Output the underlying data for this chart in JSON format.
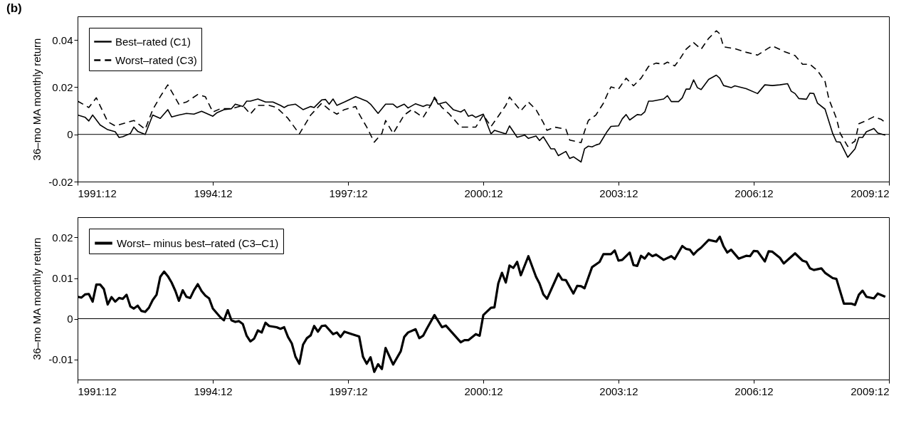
{
  "chart_data": [
    {
      "type": "line",
      "title": "(b)",
      "ylabel": "36–mo MA monthly return",
      "xlim": [
        "1991-12",
        "2009-12"
      ],
      "xticks": [
        {
          "value": "1991-12",
          "label": "1991:12"
        },
        {
          "value": "1994-12",
          "label": "1994:12"
        },
        {
          "value": "1997-12",
          "label": "1997:12"
        },
        {
          "value": "2000-12",
          "label": "2000:12"
        },
        {
          "value": "2003-12",
          "label": "2003:12"
        },
        {
          "value": "2006-12",
          "label": "2006:12"
        },
        {
          "value": "2009-12",
          "label": "2009:12"
        }
      ],
      "ylim": [
        -0.02,
        0.05
      ],
      "yticks": [
        -0.02,
        0,
        0.02,
        0.04
      ],
      "legend": "top left",
      "grid": false,
      "ref_lines": [
        {
          "axis": "y",
          "value": 0,
          "color": "#000000"
        }
      ],
      "series": [
        {
          "name": "Best–rated (C1)",
          "color": "#000000",
          "line_style": "solid",
          "x": [
            "1991-12",
            "1992-02",
            "1992-03",
            "1992-04",
            "1992-06",
            "1992-08",
            "1992-10",
            "1992-11",
            "1992-12",
            "1993-02",
            "1993-03",
            "1993-04",
            "1993-06",
            "1993-08",
            "1993-10",
            "1993-12",
            "1994-01",
            "1994-03",
            "1994-05",
            "1994-07",
            "1994-09",
            "1994-10",
            "1994-12",
            "1995-01",
            "1995-03",
            "1995-05",
            "1995-06",
            "1995-08",
            "1995-09",
            "1995-10",
            "1995-12",
            "1996-02",
            "1996-04",
            "1996-06",
            "1996-07",
            "1996-08",
            "1996-10",
            "1996-12",
            "1997-02",
            "1997-03",
            "1997-05",
            "1997-06",
            "1997-07",
            "1997-08",
            "1997-09",
            "1997-11",
            "1998-02",
            "1998-05",
            "1998-06",
            "1998-08",
            "1998-10",
            "1998-12",
            "1999-01",
            "1999-03",
            "1999-04",
            "1999-06",
            "1999-08",
            "1999-09",
            "1999-10",
            "1999-11",
            "1999-12",
            "2000-02",
            "2000-04",
            "2000-06",
            "2000-07",
            "2000-08",
            "2000-09",
            "2000-10",
            "2000-12",
            "2001-02",
            "2001-03",
            "2001-06",
            "2001-07",
            "2001-09",
            "2001-11",
            "2001-12",
            "2002-02",
            "2002-03",
            "2002-04",
            "2002-06",
            "2002-07",
            "2002-08",
            "2002-10",
            "2002-11",
            "2002-12",
            "2003-02",
            "2003-03",
            "2003-04",
            "2003-05",
            "2003-06",
            "2003-07",
            "2003-09",
            "2003-10",
            "2003-12",
            "2004-01",
            "2004-02",
            "2004-03",
            "2004-05",
            "2004-06",
            "2004-07",
            "2004-08",
            "2004-09",
            "2004-12",
            "2005-01",
            "2005-02",
            "2005-04",
            "2005-05",
            "2005-06",
            "2005-07",
            "2005-08",
            "2005-09",
            "2005-10",
            "2005-12",
            "2006-02",
            "2006-03",
            "2006-04",
            "2006-06",
            "2006-07",
            "2006-10",
            "2007-01",
            "2007-03",
            "2007-05",
            "2007-07",
            "2007-09",
            "2007-10",
            "2007-11",
            "2007-12",
            "2008-02",
            "2008-03",
            "2008-04",
            "2008-05",
            "2008-07",
            "2008-09",
            "2008-10",
            "2008-11",
            "2009-01",
            "2009-03",
            "2009-04",
            "2009-05",
            "2009-06",
            "2009-08",
            "2009-09",
            "2009-11"
          ],
          "values": [
            0.0082,
            0.0072,
            0.0057,
            0.0082,
            0.004,
            0.002,
            0.0011,
            -0.0013,
            -0.001,
            0.0004,
            0.0031,
            0.0013,
            0,
            0.0082,
            0.0068,
            0.0105,
            0.0074,
            0.0082,
            0.0089,
            0.0086,
            0.0098,
            0.0091,
            0.0077,
            0.0091,
            0.0105,
            0.0109,
            0.0128,
            0.0118,
            0.0141,
            0.0141,
            0.015,
            0.0137,
            0.0137,
            0.0123,
            0.0114,
            0.0123,
            0.0128,
            0.0105,
            0.0118,
            0.0114,
            0.0146,
            0.0148,
            0.0128,
            0.015,
            0.0123,
            0.0137,
            0.016,
            0.0141,
            0.0128,
            0.0089,
            0.0128,
            0.0128,
            0.0114,
            0.0128,
            0.0112,
            0.013,
            0.0118,
            0.0125,
            0.0123,
            0.0155,
            0.0128,
            0.0137,
            0.0105,
            0.0095,
            0.0105,
            0.0077,
            0.0082,
            0.0072,
            0.0086,
            0.0002,
            0.0017,
            0.0002,
            0.0036,
            -0.0012,
            -0.0003,
            -0.0017,
            -0.0007,
            -0.0026,
            -0.001,
            -0.0061,
            -0.0061,
            -0.009,
            -0.0072,
            -0.0102,
            -0.0095,
            -0.0117,
            -0.0061,
            -0.005,
            -0.0053,
            -0.0045,
            -0.004,
            0.0013,
            0.0034,
            0.0036,
            0.0066,
            0.0084,
            0.0061,
            0.0084,
            0.0082,
            0.0095,
            0.0141,
            0.0141,
            0.015,
            0.0164,
            0.0139,
            0.0139,
            0.0155,
            0.0192,
            0.0192,
            0.0231,
            0.0198,
            0.019,
            0.0233,
            0.0251,
            0.0238,
            0.0207,
            0.0198,
            0.0206,
            0.0194,
            0.0173,
            0.021,
            0.0207,
            0.021,
            0.0215,
            0.0183,
            0.0173,
            0.0152,
            0.0149,
            0.0175,
            0.0173,
            0.0132,
            0.0107,
            0.0004,
            -0.0031,
            -0.0033,
            -0.0097,
            -0.0061,
            -0.0013,
            -0.0013,
            0.0011,
            0.0025,
            0.0006,
            -0.0003
          ]
        },
        {
          "name": "Worst–rated (C3)",
          "color": "#000000",
          "line_style": "dashed",
          "x": [
            "1991-12",
            "1992-03",
            "1992-05",
            "1992-08",
            "1992-10",
            "1993-03",
            "1993-06",
            "1993-08",
            "1993-10",
            "1993-12",
            "1994-03",
            "1994-05",
            "1994-08",
            "1994-10",
            "1994-12",
            "1995-02",
            "1995-05",
            "1995-08",
            "1995-10",
            "1995-12",
            "1996-03",
            "1996-05",
            "1996-08",
            "1996-11",
            "1997-02",
            "1997-05",
            "1997-07",
            "1997-09",
            "1997-11",
            "1998-02",
            "1998-03",
            "1998-05",
            "1998-07",
            "1998-09",
            "1998-10",
            "1998-12",
            "1999-03",
            "1999-05",
            "1999-08",
            "1999-10",
            "1999-11",
            "2000-01",
            "2000-03",
            "2000-06",
            "2000-08",
            "2000-10",
            "2000-12",
            "2001-02",
            "2001-04",
            "2001-06",
            "2001-07",
            "2001-10",
            "2001-12",
            "2002-02",
            "2002-04",
            "2002-05",
            "2002-07",
            "2002-10",
            "2002-11",
            "2003-02",
            "2003-03",
            "2003-04",
            "2003-06",
            "2003-08",
            "2003-09",
            "2003-10",
            "2003-12",
            "2004-02",
            "2004-04",
            "2004-06",
            "2004-08",
            "2004-10",
            "2004-12",
            "2005-01",
            "2005-03",
            "2005-04",
            "2005-06",
            "2005-08",
            "2005-10",
            "2005-12",
            "2006-02",
            "2006-03",
            "2006-04",
            "2006-07",
            "2006-10",
            "2007-01",
            "2007-04",
            "2007-05",
            "2007-08",
            "2007-11",
            "2008-01",
            "2008-03",
            "2008-05",
            "2008-07",
            "2008-08",
            "2008-10",
            "2008-11",
            "2009-01",
            "2009-03",
            "2009-04",
            "2009-06",
            "2009-08",
            "2009-10",
            "2009-11"
          ],
          "values": [
            0.0141,
            0.0114,
            0.0155,
            0.0054,
            0.0036,
            0.0059,
            0.0022,
            0.0105,
            0.016,
            0.021,
            0.0128,
            0.0137,
            0.0169,
            0.016,
            0.0095,
            0.0109,
            0.0109,
            0.0123,
            0.0086,
            0.0123,
            0.0123,
            0.0114,
            0.0068,
            0.0002,
            0.0082,
            0.0132,
            0.0105,
            0.0086,
            0.0105,
            0.0118,
            0.0086,
            0.0031,
            -0.0033,
            0.0004,
            0.0059,
            0.0004,
            0.0082,
            0.0105,
            0.0072,
            0.0123,
            0.0158,
            0.0114,
            0.0086,
            0.0031,
            0.0031,
            0.0031,
            0.0082,
            0.0033,
            0.0077,
            0.0123,
            0.0158,
            0.01,
            0.0137,
            0.0105,
            0.005,
            0.0017,
            0.0031,
            0.0022,
            -0.0024,
            -0.0035,
            0.0013,
            0.0059,
            0.0082,
            0.0132,
            0.0169,
            0.0201,
            0.0192,
            0.0238,
            0.0206,
            0.0238,
            0.0288,
            0.0302,
            0.0297,
            0.0306,
            0.029,
            0.0311,
            0.0361,
            0.0389,
            0.0361,
            0.0407,
            0.0439,
            0.0426,
            0.0371,
            0.0363,
            0.0348,
            0.0336,
            0.0366,
            0.0375,
            0.0352,
            0.0334,
            0.0297,
            0.0297,
            0.027,
            0.0224,
            0.015,
            0.0068,
            0.0004,
            -0.0051,
            -0.0028,
            0.0045,
            0.0059,
            0.0075,
            0.0063,
            0.0051
          ]
        }
      ]
    },
    {
      "type": "line",
      "ylabel": "36–mo MA monthly return",
      "xlim": [
        "1991-12",
        "2009-12"
      ],
      "xticks": [
        {
          "value": "1991-12",
          "label": "1991:12"
        },
        {
          "value": "1994-12",
          "label": "1994:12"
        },
        {
          "value": "1997-12",
          "label": "1997:12"
        },
        {
          "value": "2000-12",
          "label": "2000:12"
        },
        {
          "value": "2003-12",
          "label": "2003:12"
        },
        {
          "value": "2006-12",
          "label": "2006:12"
        },
        {
          "value": "2009-12",
          "label": "2009:12"
        }
      ],
      "ylim": [
        -0.015,
        0.025
      ],
      "yticks": [
        -0.01,
        0,
        0.01,
        0.02
      ],
      "legend": "top left",
      "grid": false,
      "ref_lines": [
        {
          "axis": "y",
          "value": 0,
          "color": "#000000"
        }
      ],
      "series": [
        {
          "name": "Worst– minus best–rated (C3–C1)",
          "color": "#000000",
          "line_style": "solid",
          "x": [
            "1991-12",
            "1992-01",
            "1992-02",
            "1992-03",
            "1992-04",
            "1992-05",
            "1992-06",
            "1992-07",
            "1992-08",
            "1992-09",
            "1992-10",
            "1992-11",
            "1992-12",
            "1993-01",
            "1993-02",
            "1993-03",
            "1993-04",
            "1993-05",
            "1993-06",
            "1993-07",
            "1993-08",
            "1993-09",
            "1993-10",
            "1993-11",
            "1993-12",
            "1994-01",
            "1994-02",
            "1994-03",
            "1994-04",
            "1994-05",
            "1994-06",
            "1994-07",
            "1994-08",
            "1994-09",
            "1994-10",
            "1994-11",
            "1994-12",
            "1995-01",
            "1995-02",
            "1995-03",
            "1995-04",
            "1995-05",
            "1995-06",
            "1995-07",
            "1995-08",
            "1995-09",
            "1995-10",
            "1995-11",
            "1995-12",
            "1996-01",
            "1996-02",
            "1996-03",
            "1996-05",
            "1996-06",
            "1996-07",
            "1996-08",
            "1996-09",
            "1996-10",
            "1996-11",
            "1996-12",
            "1997-01",
            "1997-02",
            "1997-03",
            "1997-04",
            "1997-05",
            "1997-06",
            "1997-08",
            "1997-09",
            "1997-10",
            "1997-11",
            "1998-01",
            "1998-03",
            "1998-04",
            "1998-05",
            "1998-06",
            "1998-07",
            "1998-08",
            "1998-09",
            "1998-10",
            "1998-12",
            "1999-02",
            "1999-03",
            "1999-04",
            "1999-06",
            "1999-07",
            "1999-08",
            "1999-09",
            "1999-11",
            "2000-01",
            "2000-02",
            "2000-06",
            "2000-07",
            "2000-08",
            "2000-10",
            "2000-11",
            "2000-12",
            "2001-02",
            "2001-03",
            "2001-04",
            "2001-05",
            "2001-06",
            "2001-07",
            "2001-08",
            "2001-09",
            "2001-10",
            "2001-12",
            "2002-02",
            "2002-03",
            "2002-04",
            "2002-05",
            "2002-08",
            "2002-09",
            "2002-10",
            "2002-12",
            "2003-01",
            "2003-02",
            "2003-03",
            "2003-05",
            "2003-07",
            "2003-08",
            "2003-10",
            "2003-11",
            "2003-12",
            "2004-01",
            "2004-03",
            "2004-04",
            "2004-05",
            "2004-06",
            "2004-07",
            "2004-08",
            "2004-09",
            "2004-10",
            "2004-12",
            "2005-02",
            "2005-03",
            "2005-05",
            "2005-06",
            "2005-07",
            "2005-08",
            "2005-09",
            "2005-10",
            "2005-12",
            "2006-02",
            "2006-03",
            "2006-04",
            "2006-05",
            "2006-06",
            "2006-08",
            "2006-10",
            "2006-11",
            "2006-12",
            "2007-01",
            "2007-03",
            "2007-04",
            "2007-05",
            "2007-07",
            "2007-08",
            "2007-11",
            "2008-01",
            "2008-02",
            "2008-03",
            "2008-04",
            "2008-06",
            "2008-07",
            "2008-09",
            "2008-10",
            "2008-12",
            "2009-02",
            "2009-03",
            "2009-04",
            "2009-05",
            "2009-06",
            "2009-08",
            "2009-09",
            "2009-11"
          ],
          "values": [
            0.0054,
            0.0052,
            0.006,
            0.0061,
            0.0042,
            0.0084,
            0.0084,
            0.0073,
            0.0035,
            0.0053,
            0.0042,
            0.0051,
            0.0049,
            0.0059,
            0.003,
            0.0025,
            0.0032,
            0.0019,
            0.0017,
            0.0027,
            0.0046,
            0.0059,
            0.0103,
            0.0116,
            0.0105,
            0.0089,
            0.0068,
            0.0044,
            0.007,
            0.0054,
            0.0051,
            0.007,
            0.0085,
            0.0068,
            0.0057,
            0.005,
            0.0025,
            0.0014,
            0.0003,
            -0.0004,
            0.0021,
            -0.0004,
            -0.0008,
            -0.0006,
            -0.0013,
            -0.0042,
            -0.0056,
            -0.0049,
            -0.0029,
            -0.0034,
            -0.001,
            -0.0018,
            -0.0021,
            -0.0025,
            -0.0021,
            -0.0045,
            -0.0061,
            -0.0094,
            -0.0111,
            -0.0064,
            -0.0048,
            -0.0041,
            -0.0018,
            -0.0032,
            -0.0018,
            -0.0017,
            -0.0038,
            -0.0034,
            -0.0045,
            -0.0032,
            -0.0038,
            -0.0044,
            -0.0094,
            -0.0111,
            -0.0095,
            -0.0131,
            -0.0112,
            -0.0124,
            -0.0072,
            -0.0113,
            -0.008,
            -0.0045,
            -0.0034,
            -0.0026,
            -0.0048,
            -0.0042,
            -0.0024,
            0.0009,
            -0.0021,
            -0.0017,
            -0.0058,
            -0.0053,
            -0.0053,
            -0.0038,
            -0.0042,
            0.0009,
            0.0027,
            0.0028,
            0.0087,
            0.0113,
            0.0089,
            0.0131,
            0.0125,
            0.014,
            0.0107,
            0.0154,
            0.0103,
            0.0087,
            0.006,
            0.0049,
            0.0111,
            0.0096,
            0.0095,
            0.0062,
            0.0081,
            0.008,
            0.0075,
            0.0127,
            0.014,
            0.0159,
            0.0159,
            0.0168,
            0.0143,
            0.0145,
            0.0163,
            0.0132,
            0.013,
            0.0155,
            0.0148,
            0.0161,
            0.0154,
            0.0158,
            0.0145,
            0.0154,
            0.0147,
            0.0179,
            0.0172,
            0.017,
            0.0158,
            0.0168,
            0.0175,
            0.0194,
            0.019,
            0.0202,
            0.0178,
            0.0163,
            0.017,
            0.0148,
            0.0155,
            0.0154,
            0.0167,
            0.0166,
            0.0141,
            0.0166,
            0.0165,
            0.015,
            0.0136,
            0.0161,
            0.0143,
            0.014,
            0.0124,
            0.012,
            0.0124,
            0.0113,
            0.01,
            0.0098,
            0.0037,
            0.0037,
            0.0034,
            0.0059,
            0.0069,
            0.0054,
            0.005,
            0.0062,
            0.0054
          ]
        }
      ]
    }
  ]
}
